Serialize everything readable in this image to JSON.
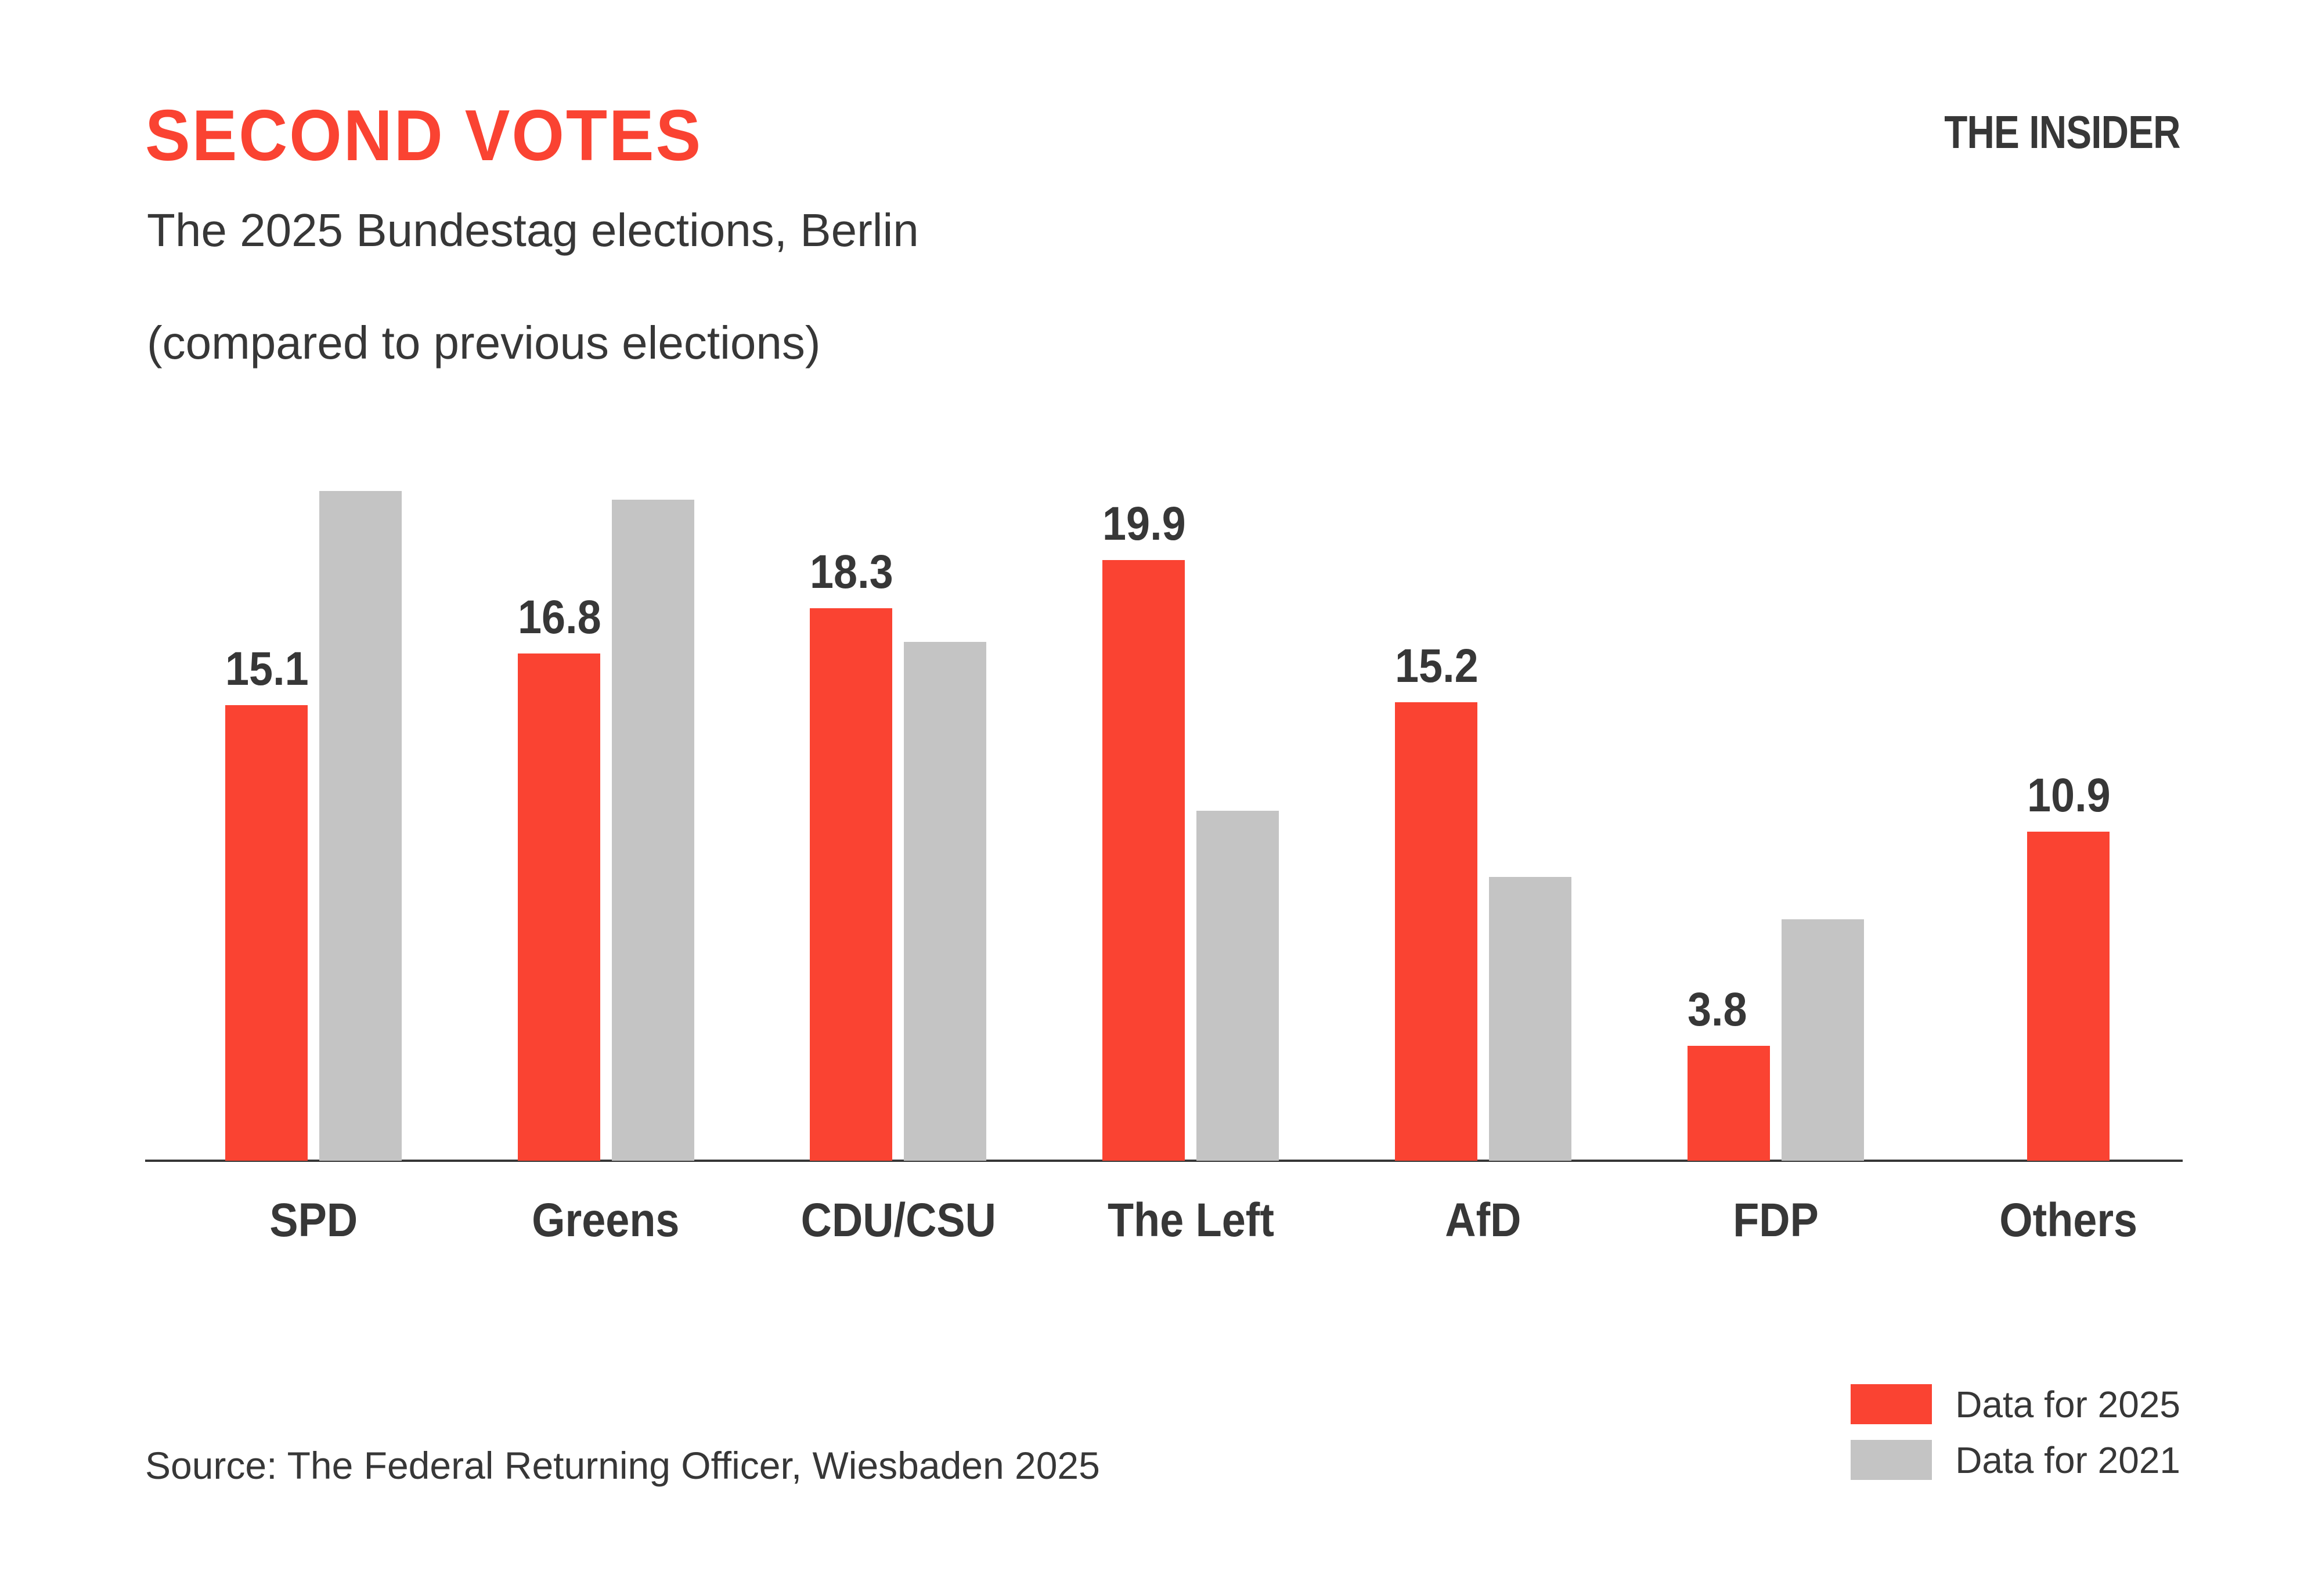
{
  "header": {
    "title": "SECOND VOTES",
    "subtitle_line1": "The 2025 Bundestag elections, Berlin",
    "subtitle_line2": "(compared to previous elections)",
    "brand": "THE INSIDER"
  },
  "colors": {
    "accent_red": "#FA4332",
    "bar_gray": "#C4C4C4",
    "text_dark": "#373737",
    "axis": "#373737",
    "background": "#FFFFFF"
  },
  "chart_data": {
    "type": "bar",
    "title": "SECOND VOTES",
    "subtitle": "The 2025 Bundestag elections, Berlin (compared to previous elections)",
    "categories": [
      "SPD",
      "Greens",
      "CDU/CSU",
      "The Left",
      "AfD",
      "FDP",
      "Others"
    ],
    "series": [
      {
        "name": "Data for 2025",
        "color": "#FA4332",
        "values": [
          15.1,
          16.8,
          18.3,
          19.9,
          15.2,
          3.8,
          10.9
        ],
        "labels_shown": true
      },
      {
        "name": "Data for 2021",
        "color": "#C4C4C4",
        "values": [
          22.2,
          21.9,
          17.2,
          11.6,
          9.4,
          8.0,
          null
        ],
        "labels_shown": false
      }
    ],
    "value_labels": [
      "15.1",
      "16.8",
      "18.3",
      "19.9",
      "15.2",
      "3.8",
      "10.9"
    ],
    "xlabel": "",
    "ylabel": "",
    "ylim": [
      0,
      23.5
    ],
    "grid": false,
    "legend_position": "bottom-right",
    "baseline_axis": true
  },
  "legend": {
    "items": [
      {
        "label": "Data for 2025",
        "color": "#FA4332"
      },
      {
        "label": "Data for 2021",
        "color": "#C4C4C4"
      }
    ]
  },
  "source": {
    "text": "Source: The Federal Returning Officer, Wiesbaden 2025"
  }
}
